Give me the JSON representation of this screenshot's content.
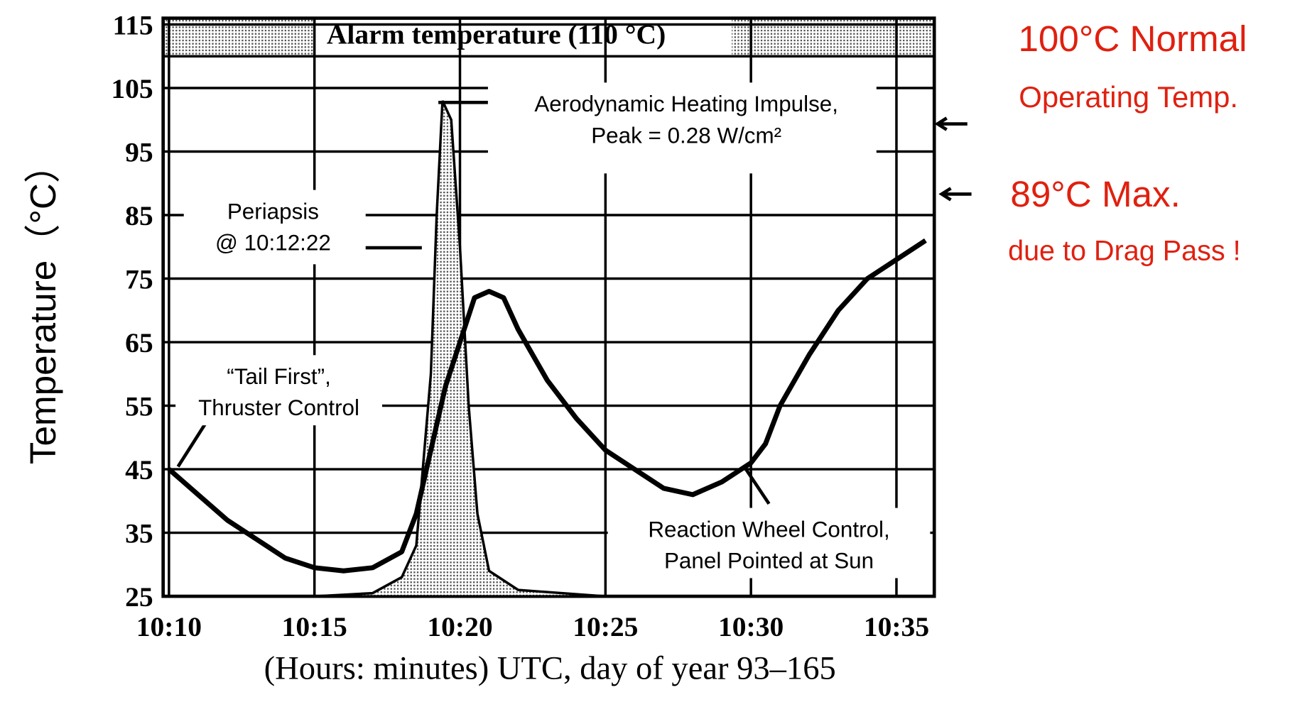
{
  "chart_data": {
    "type": "line",
    "y_label": "Temperature（°C）",
    "x_label": "(Hours: minutes) UTC, day of year 93–165",
    "xlim": [
      9.8,
      36.3
    ],
    "ylim": [
      25,
      116
    ],
    "xticks": [
      {
        "value": 10,
        "label": "10:10"
      },
      {
        "value": 15,
        "label": "10:15"
      },
      {
        "value": 20,
        "label": "10:20"
      },
      {
        "value": 25,
        "label": "10:25"
      },
      {
        "value": 30,
        "label": "10:30"
      },
      {
        "value": 35,
        "label": "10:35"
      }
    ],
    "yticks": [
      25,
      35,
      45,
      55,
      65,
      75,
      85,
      95,
      105,
      115
    ],
    "grid": true,
    "alarm": {
      "from": 110,
      "to": 116,
      "label": "Alarm temperature (110 °C)",
      "color": "#b8b8b8"
    },
    "series": [
      {
        "color": "#000000",
        "style": "line",
        "x": [
          10,
          11,
          12,
          13,
          14,
          15,
          16,
          17,
          18,
          18.5,
          19,
          19.5,
          20,
          20.5,
          21,
          21.5,
          22,
          23,
          24,
          25,
          26,
          27,
          28,
          29,
          30,
          30.5,
          31,
          32,
          33,
          34,
          35,
          36
        ],
        "values": [
          45,
          41,
          37,
          34,
          31,
          29.5,
          29,
          29.5,
          32,
          38,
          48,
          58,
          65,
          72,
          73,
          72,
          67,
          59,
          53,
          48,
          45,
          42,
          41,
          43,
          46,
          49,
          55,
          63,
          70,
          75,
          78,
          81
        ]
      },
      {
        "color": "#9a9a9a",
        "style": "area",
        "x": [
          10,
          15,
          17,
          18,
          18.5,
          19,
          19.2,
          19.4,
          19.7,
          20,
          20.3,
          20.6,
          21,
          22,
          25
        ],
        "values": [
          25,
          25,
          25.5,
          28,
          33,
          60,
          85,
          103,
          100,
          80,
          55,
          38,
          29,
          26,
          25
        ]
      }
    ],
    "annotations": [
      {
        "lines": [
          "Aerodynamic Heating Impulse,",
          "Peak = 0.28 W/cm²"
        ]
      },
      {
        "lines": [
          "Periapsis",
          "@ 10:12:22"
        ]
      },
      {
        "lines": [
          "“Tail First”,",
          "Thruster Control"
        ]
      },
      {
        "lines": [
          "Reaction Wheel Control,",
          "Panel Pointed at Sun"
        ]
      }
    ],
    "notes": [
      "100°C Normal",
      "Operating Temp.",
      "89°C Max.",
      "due to Drag Pass !"
    ]
  }
}
